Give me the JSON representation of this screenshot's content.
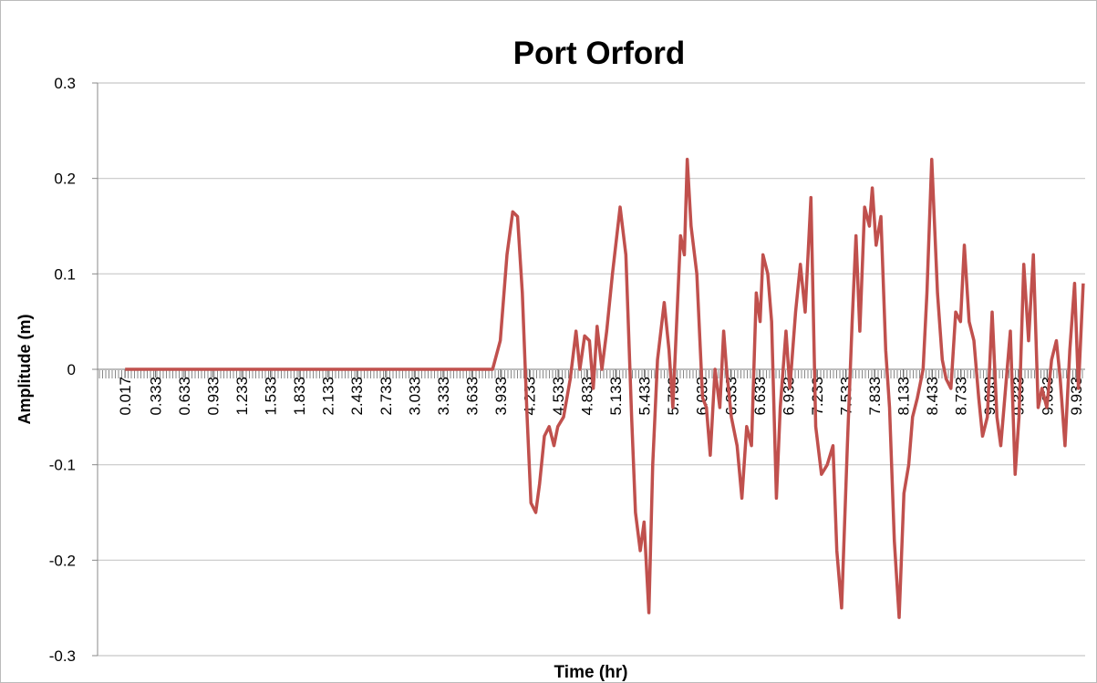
{
  "chart_data": {
    "type": "line",
    "title": "Port Orford",
    "xlabel": "Time (hr)",
    "ylabel": "Amplitude (m)",
    "xlim": [
      -0.27,
      10.03
    ],
    "ylim": [
      -0.3,
      0.3
    ],
    "xticks": [
      0.017,
      0.333,
      0.633,
      0.933,
      1.233,
      1.533,
      1.833,
      2.133,
      2.433,
      2.733,
      3.033,
      3.333,
      3.633,
      3.933,
      4.233,
      4.533,
      4.833,
      5.133,
      5.433,
      5.733,
      6.033,
      6.333,
      6.633,
      6.933,
      7.233,
      7.533,
      7.833,
      8.133,
      8.433,
      8.733,
      9.033,
      9.333,
      9.633,
      9.933
    ],
    "yticks": [
      -0.3,
      -0.2,
      -0.1,
      0,
      0.1,
      0.2,
      0.3
    ],
    "grid": true,
    "series": [
      {
        "name": "Port Orford",
        "color": "#c0504d",
        "x": [
          0.017,
          3.85,
          3.93,
          4.0,
          4.06,
          4.11,
          4.16,
          4.21,
          4.25,
          4.3,
          4.34,
          4.39,
          4.44,
          4.49,
          4.53,
          4.59,
          4.66,
          4.72,
          4.76,
          4.81,
          4.86,
          4.9,
          4.94,
          4.99,
          5.04,
          5.1,
          5.18,
          5.24,
          5.3,
          5.34,
          5.39,
          5.43,
          5.48,
          5.52,
          5.57,
          5.64,
          5.69,
          5.73,
          5.77,
          5.81,
          5.85,
          5.88,
          5.92,
          5.98,
          6.04,
          6.08,
          6.12,
          6.17,
          6.22,
          6.26,
          6.29,
          6.34,
          6.4,
          6.45,
          6.5,
          6.55,
          6.6,
          6.64,
          6.67,
          6.72,
          6.76,
          6.81,
          6.85,
          6.91,
          6.95,
          7.01,
          7.06,
          7.11,
          7.17,
          7.22,
          7.28,
          7.34,
          7.4,
          7.44,
          7.49,
          7.55,
          7.6,
          7.64,
          7.68,
          7.73,
          7.78,
          7.81,
          7.85,
          7.9,
          7.95,
          7.99,
          8.04,
          8.09,
          8.14,
          8.19,
          8.23,
          8.28,
          8.34,
          8.38,
          8.43,
          8.49,
          8.54,
          8.58,
          8.63,
          8.68,
          8.73,
          8.77,
          8.82,
          8.87,
          8.92,
          8.96,
          9.01,
          9.06,
          9.11,
          9.15,
          9.2,
          9.25,
          9.3,
          9.34,
          9.39,
          9.44,
          9.49,
          9.54,
          9.58,
          9.63,
          9.68,
          9.73,
          9.77,
          9.82,
          9.87,
          9.92,
          9.96,
          10.01
        ],
        "values": [
          0,
          0,
          0.03,
          0.12,
          0.165,
          0.16,
          0.08,
          -0.05,
          -0.14,
          -0.15,
          -0.12,
          -0.07,
          -0.06,
          -0.08,
          -0.06,
          -0.05,
          -0.01,
          0.04,
          0.0,
          0.035,
          0.03,
          -0.02,
          0.045,
          0.0,
          0.04,
          0.1,
          0.17,
          0.12,
          -0.05,
          -0.15,
          -0.19,
          -0.16,
          -0.255,
          -0.1,
          0.01,
          0.07,
          0.02,
          -0.04,
          0.05,
          0.14,
          0.12,
          0.22,
          0.15,
          0.1,
          -0.03,
          -0.04,
          -0.09,
          0.0,
          -0.04,
          0.04,
          0.0,
          -0.05,
          -0.08,
          -0.135,
          -0.06,
          -0.08,
          0.08,
          0.05,
          0.12,
          0.1,
          0.05,
          -0.135,
          -0.04,
          0.04,
          -0.02,
          0.06,
          0.11,
          0.06,
          0.18,
          -0.06,
          -0.11,
          -0.1,
          -0.08,
          -0.19,
          -0.25,
          -0.08,
          0.05,
          0.14,
          0.04,
          0.17,
          0.15,
          0.19,
          0.13,
          0.16,
          0.02,
          -0.04,
          -0.18,
          -0.26,
          -0.13,
          -0.1,
          -0.05,
          -0.03,
          0.0,
          0.08,
          0.22,
          0.08,
          0.01,
          -0.01,
          -0.02,
          0.06,
          0.05,
          0.13,
          0.05,
          0.03,
          -0.03,
          -0.07,
          -0.05,
          0.06,
          -0.05,
          -0.08,
          -0.02,
          0.04,
          -0.11,
          -0.05,
          0.11,
          0.03,
          0.12,
          -0.04,
          -0.02,
          -0.04,
          0.01,
          0.03,
          -0.01,
          -0.08,
          0.02,
          0.09,
          -0.02,
          0.09
        ]
      }
    ]
  }
}
